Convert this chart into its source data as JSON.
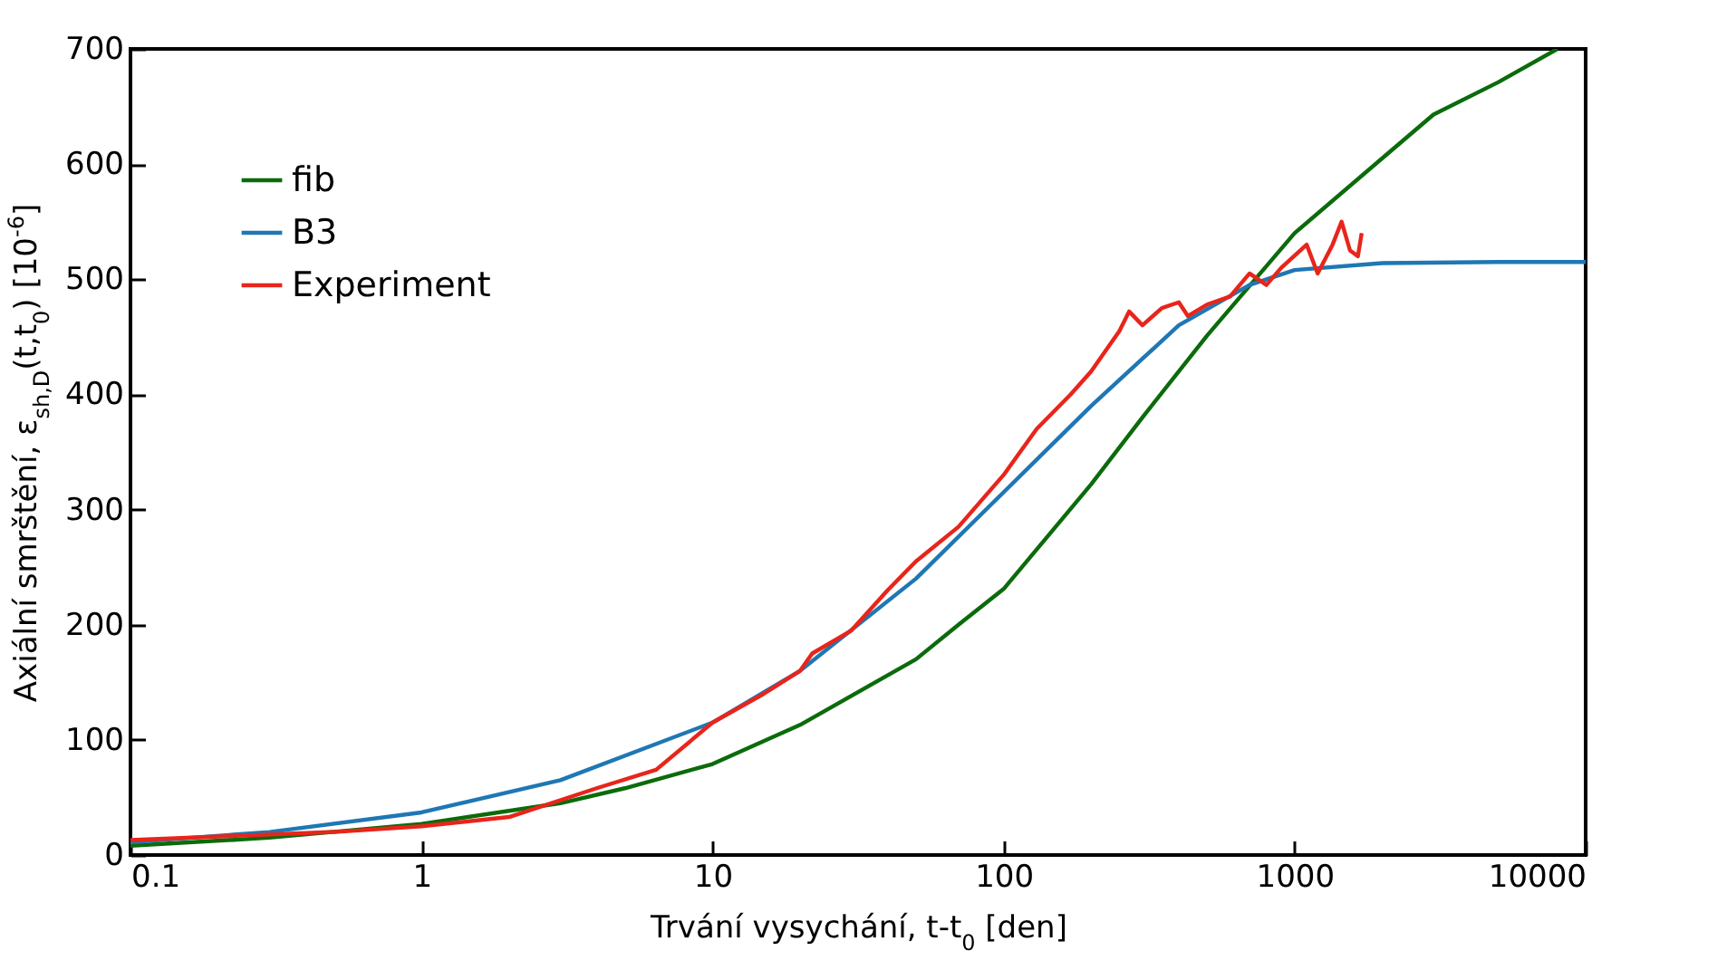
{
  "chart_data": {
    "type": "line",
    "xlabel": "Trvání vysychání, t-t$_{0}$ [den]",
    "ylabel": "Axiální smrštění, ε$_{sh,D}$(t,t$_{0}$) [10$^{-6}$]",
    "log": "x",
    "xlim": [
      0.1,
      10000
    ],
    "xticks": [
      0.1,
      1,
      10,
      100,
      1000,
      10000
    ],
    "ylim": [
      0,
      700
    ],
    "yticks": [
      0,
      100,
      200,
      300,
      400,
      500,
      600,
      700
    ],
    "legend": "top left",
    "grid": false,
    "series": [
      {
        "name": "fib",
        "color": "#0b6b0b",
        "x": [
          0.1,
          0.3,
          1,
          3,
          5,
          10,
          20,
          50,
          70,
          100,
          200,
          300,
          500,
          1000,
          2000,
          3000,
          5000,
          8000
        ],
        "values": [
          8,
          15,
          27,
          45,
          58,
          79,
          113,
          170,
          200,
          231,
          322,
          380,
          451,
          540,
          605,
          643,
          671,
          700
        ]
      },
      {
        "name": "B3",
        "color": "#1f77b4",
        "x": [
          0.1,
          0.3,
          1,
          3,
          10,
          20,
          50,
          100,
          200,
          400,
          700,
          1000,
          2000,
          5000,
          10000
        ],
        "values": [
          11,
          20,
          37,
          65,
          115,
          160,
          240,
          315,
          390,
          460,
          495,
          508,
          514,
          515,
          515
        ]
      },
      {
        "name": "Experiment",
        "color": "#e8251b",
        "x": [
          0.1,
          0.5,
          1,
          2,
          4,
          6.4,
          10,
          15,
          20,
          22,
          30,
          40,
          50,
          70,
          100,
          130,
          170,
          200,
          250,
          270,
          300,
          350,
          400,
          430,
          500,
          600,
          700,
          800,
          900,
          1100,
          1200,
          1350,
          1450,
          1550,
          1650,
          1700
        ],
        "values": [
          13,
          20,
          25,
          33,
          58,
          74,
          115,
          140,
          160,
          175,
          195,
          230,
          255,
          285,
          330,
          370,
          400,
          420,
          455,
          472,
          460,
          475,
          480,
          468,
          478,
          485,
          505,
          495,
          510,
          530,
          505,
          530,
          550,
          525,
          520,
          540
        ]
      }
    ]
  }
}
